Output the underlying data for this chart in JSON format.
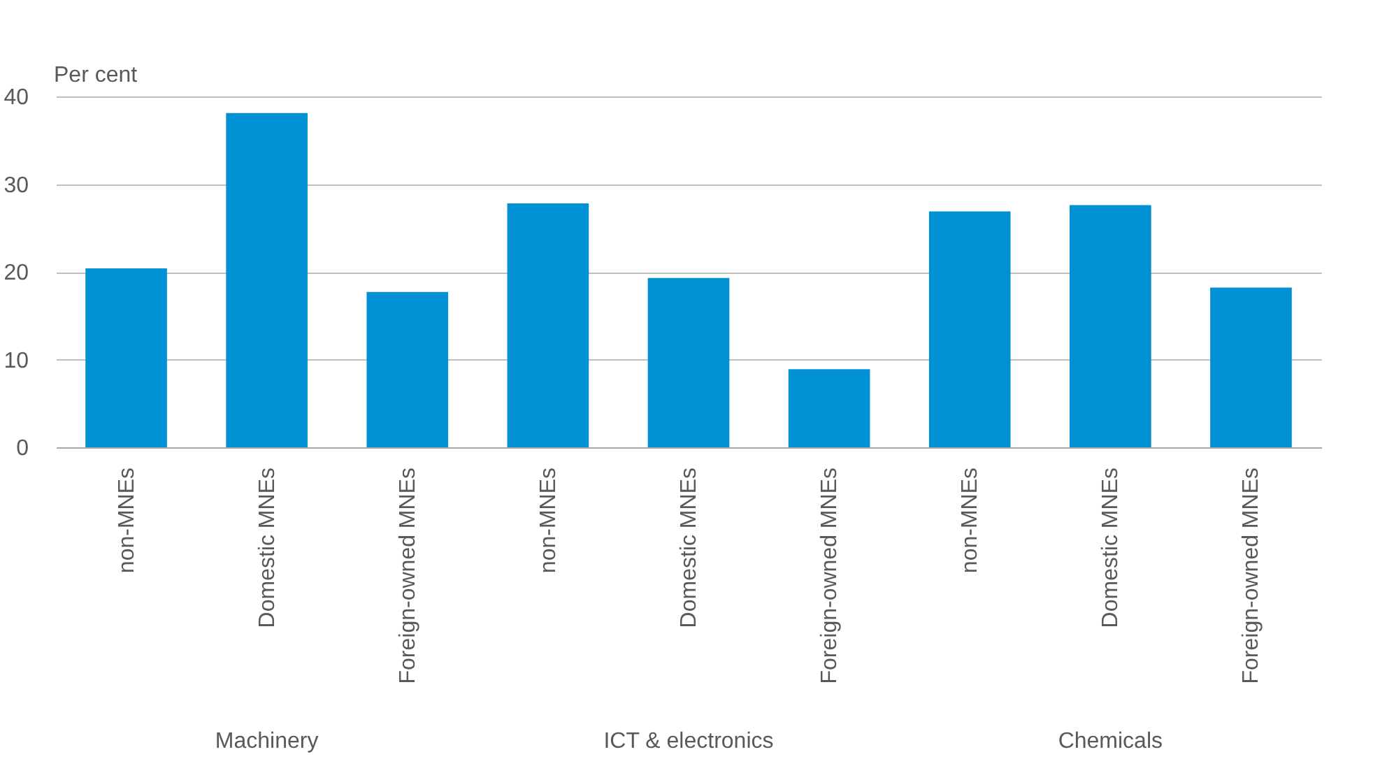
{
  "chart_data": {
    "type": "bar",
    "ylabel": "Per cent",
    "categories": [
      "non-MNEs",
      "Domestic MNEs",
      "Foreign-owned MNEs",
      "non-MNEs",
      "Domestic MNEs",
      "Foreign-owned MNEs",
      "non-MNEs",
      "Domestic MNEs",
      "Foreign-owned MNEs"
    ],
    "values": [
      20.4,
      38.1,
      17.7,
      27.8,
      19.3,
      8.9,
      26.9,
      27.6,
      18.2
    ],
    "color": "#0090d4",
    "ylim": [
      0,
      40
    ],
    "yticks": [
      0,
      10,
      20,
      30,
      40
    ],
    "grid": "y",
    "annotations": [
      "Machinery",
      "ICT & electronics",
      "Chemicals"
    ]
  }
}
